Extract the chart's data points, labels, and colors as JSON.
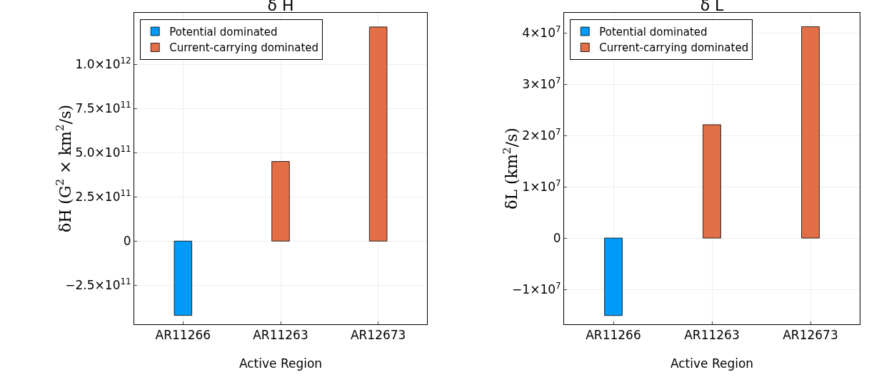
{
  "chart_data": [
    {
      "type": "bar",
      "title": "δ H",
      "xlabel": "Active Region",
      "ylabel": "δH (G$^{2}$ × km$^{2}$/s)",
      "categories": [
        "AR11266",
        "AR11263",
        "AR12673"
      ],
      "series": [
        {
          "name": "Potential dominated",
          "color": "#009af9",
          "values": [
            -420000000000.0,
            null,
            null
          ]
        },
        {
          "name": "Current-carrying dominated",
          "color": "#e26f46",
          "values": [
            null,
            450000000000.0,
            1210000000000.0
          ]
        }
      ],
      "ylim": [
        -470000000000.0,
        1290000000000.0
      ],
      "yticks": [
        {
          "value": -250000000000.0,
          "label": "−2.5×10$^{11}$"
        },
        {
          "value": 0,
          "label": "0"
        },
        {
          "value": 250000000000.0,
          "label": "2.5×10$^{11}$"
        },
        {
          "value": 500000000000.0,
          "label": "5.0×10$^{11}$"
        },
        {
          "value": 750000000000.0,
          "label": "7.5×10$^{11}$"
        },
        {
          "value": 1000000000000.0,
          "label": "1.0×10$^{12}$"
        }
      ],
      "grid": true,
      "legend": "top left"
    },
    {
      "type": "bar",
      "title": "δ L",
      "xlabel": "Active Region",
      "ylabel": "δL (km$^{2}$/s)",
      "categories": [
        "AR11266",
        "AR11263",
        "AR12673"
      ],
      "series": [
        {
          "name": "Potential dominated",
          "color": "#009af9",
          "values": [
            -15100000.0,
            null,
            null
          ]
        },
        {
          "name": "Current-carrying dominated",
          "color": "#e26f46",
          "values": [
            null,
            22100000.0,
            41200000.0
          ]
        }
      ],
      "ylim": [
        -16800000.0,
        43900000.0
      ],
      "yticks": [
        {
          "value": -10000000.0,
          "label": "−1×10$^{7}$"
        },
        {
          "value": 0,
          "label": "0"
        },
        {
          "value": 10000000.0,
          "label": "1×10$^{7}$"
        },
        {
          "value": 20000000.0,
          "label": "2×10$^{7}$"
        },
        {
          "value": 30000000.0,
          "label": "3×10$^{7}$"
        },
        {
          "value": 40000000.0,
          "label": "4×10$^{7}$"
        }
      ],
      "grid": true,
      "legend": "top left"
    }
  ]
}
